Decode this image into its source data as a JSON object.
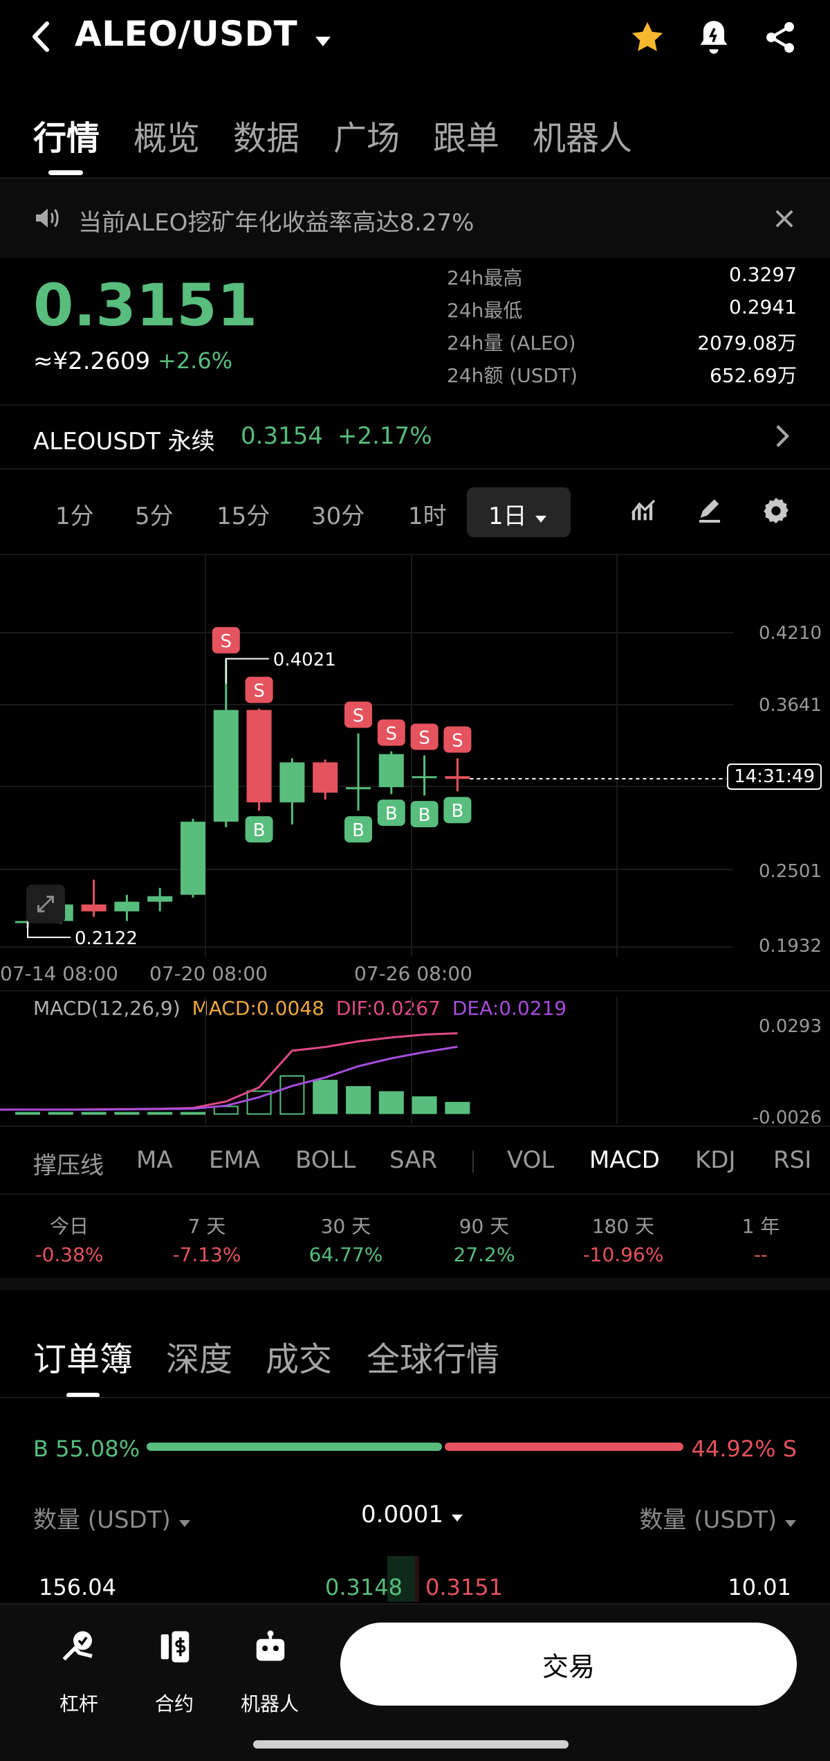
{
  "header": {
    "pair": "ALEO/USDT",
    "tabs": [
      "行情",
      "概览",
      "数据",
      "广场",
      "跟单",
      "机器人"
    ]
  },
  "notice": {
    "text": "当前ALEO挖矿年化收益率高达8.27%"
  },
  "ticker": {
    "price": "0.3151",
    "cny": "≈¥2.2609",
    "change": "+2.6%",
    "stats": [
      {
        "label": "24h最高",
        "value": "0.3297"
      },
      {
        "label": "24h最低",
        "value": "0.2941"
      },
      {
        "label": "24h量 (ALEO)",
        "value": "2079.08万"
      },
      {
        "label": "24h额 (USDT)",
        "value": "652.69万"
      }
    ]
  },
  "perpetual": {
    "label": "ALEOUSDT 永续",
    "price": "0.3154",
    "change": "+2.17%"
  },
  "intervals": [
    "1分",
    "5分",
    "15分",
    "30分",
    "1时",
    "1日"
  ],
  "chart_data": {
    "type": "candlestick",
    "y_ticks": [
      "0.4210",
      "0.3641",
      "0.2501",
      "0.1932"
    ],
    "x_ticks": [
      "07-14 08:00",
      "07-20 08:00",
      "07-26 08:00"
    ],
    "countdown": "14:31:49",
    "high_annotation": "0.4021",
    "low_annotation": "0.2122",
    "current_price_line": 0.3151,
    "candles": [
      {
        "o": 0.211,
        "h": 0.214,
        "l": 0.207,
        "c": 0.212
      },
      {
        "o": 0.212,
        "h": 0.228,
        "l": 0.21,
        "c": 0.224
      },
      {
        "o": 0.224,
        "h": 0.242,
        "l": 0.215,
        "c": 0.219
      },
      {
        "o": 0.219,
        "h": 0.231,
        "l": 0.212,
        "c": 0.226
      },
      {
        "o": 0.226,
        "h": 0.236,
        "l": 0.219,
        "c": 0.23
      },
      {
        "o": 0.231,
        "h": 0.286,
        "l": 0.229,
        "c": 0.284
      },
      {
        "o": 0.284,
        "h": 0.402,
        "l": 0.28,
        "c": 0.365
      },
      {
        "o": 0.365,
        "h": 0.366,
        "l": 0.292,
        "c": 0.298
      },
      {
        "o": 0.298,
        "h": 0.33,
        "l": 0.282,
        "c": 0.327
      },
      {
        "o": 0.327,
        "h": 0.329,
        "l": 0.3,
        "c": 0.305
      },
      {
        "o": 0.309,
        "h": 0.348,
        "l": 0.292,
        "c": 0.309
      },
      {
        "o": 0.309,
        "h": 0.335,
        "l": 0.304,
        "c": 0.333
      },
      {
        "o": 0.317,
        "h": 0.332,
        "l": 0.303,
        "c": 0.317
      },
      {
        "o": 0.317,
        "h": 0.33,
        "l": 0.306,
        "c": 0.315
      }
    ],
    "signals": [
      {
        "candle": 6,
        "type": "S"
      },
      {
        "candle": 7,
        "type": "S"
      },
      {
        "candle": 7,
        "type": "B"
      },
      {
        "candle": 10,
        "type": "S"
      },
      {
        "candle": 10,
        "type": "B"
      },
      {
        "candle": 11,
        "type": "S"
      },
      {
        "candle": 11,
        "type": "B"
      },
      {
        "candle": 12,
        "type": "S"
      },
      {
        "candle": 12,
        "type": "B"
      },
      {
        "candle": 13,
        "type": "S"
      },
      {
        "candle": 13,
        "type": "B"
      }
    ],
    "macd": {
      "label": "MACD(12,26,9)",
      "macd": "MACD:0.0048",
      "dif": "DIF:0.0267",
      "dea": "DEA:0.0219",
      "y_ticks": [
        "0.0293",
        "-0.0026"
      ],
      "dif_series": [
        -0.0004,
        -0.0004,
        -0.0003,
        -0.0002,
        -0.0001,
        0.0002,
        0.0025,
        0.0075,
        0.0205,
        0.0218,
        0.0238,
        0.0252,
        0.0262,
        0.0267
      ],
      "dea_series": [
        -0.0004,
        -0.0004,
        -0.0004,
        -0.0003,
        -0.0002,
        -0.0001,
        0.001,
        0.004,
        0.008,
        0.011,
        0.015,
        0.0178,
        0.02,
        0.0219
      ],
      "hist": [
        -0.0002,
        -0.0001,
        -0.0001,
        0.0,
        0.0001,
        0.0002,
        0.003,
        0.009,
        0.015,
        0.0135,
        0.011,
        0.009,
        0.007,
        0.0048
      ]
    }
  },
  "indicators": [
    "撑压线",
    "MA",
    "EMA",
    "BOLL",
    "SAR",
    "VOL",
    "MACD",
    "KDJ",
    "RSI"
  ],
  "active_indicator": "MACD",
  "performance": [
    {
      "label": "今日",
      "value": "-0.38%",
      "color": "red"
    },
    {
      "label": "7 天",
      "value": "-7.13%",
      "color": "red"
    },
    {
      "label": "30 天",
      "value": "64.77%",
      "color": "green"
    },
    {
      "label": "90 天",
      "value": "27.2%",
      "color": "green"
    },
    {
      "label": "180 天",
      "value": "-10.96%",
      "color": "red"
    },
    {
      "label": "1 年",
      "value": "--",
      "color": "red"
    }
  ],
  "orderbook": {
    "tabs": [
      "订单簿",
      "深度",
      "成交",
      "全球行情"
    ],
    "buy_ratio": "B 55.08%",
    "sell_ratio": "44.92% S",
    "buy_fraction": 0.5508,
    "col_left": "数量 (USDT)",
    "precision": "0.0001",
    "col_right": "数量 (USDT)",
    "first_row": {
      "bid_qty": "156.04",
      "bid_price": "0.3148",
      "ask_price": "0.3151",
      "ask_qty": "10.01"
    }
  },
  "bottom_nav": {
    "items": [
      "杠杆",
      "合约",
      "机器人"
    ],
    "trade": "交易"
  },
  "colors": {
    "up": "#58bd7d",
    "down": "#e5535e",
    "accent": "#f5b82e",
    "dif": "#e04a8a",
    "dea": "#a64ddb",
    "macd": "#f0a83c"
  }
}
